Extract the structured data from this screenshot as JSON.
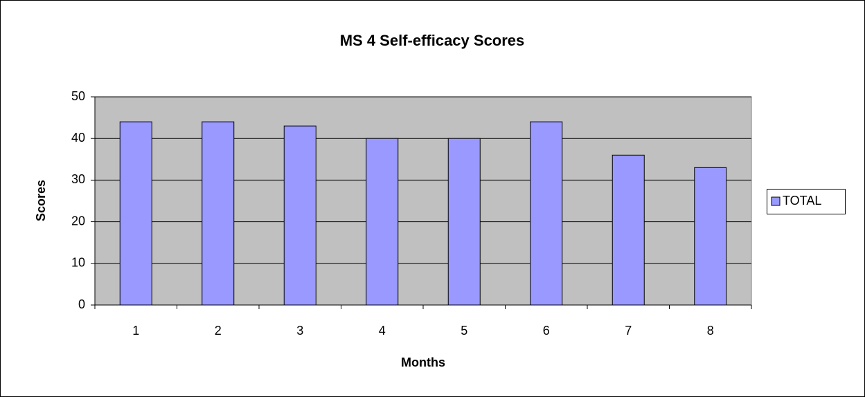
{
  "chart_data": {
    "type": "bar",
    "title": "MS 4 Self-efficacy Scores",
    "x_label": "Months",
    "y_label": "Scores",
    "categories": [
      "1",
      "2",
      "3",
      "4",
      "5",
      "6",
      "7",
      "8"
    ],
    "series": [
      {
        "name": "TOTAL",
        "color": "#9999ff",
        "values": [
          44,
          44,
          43,
          40,
          40,
          44,
          36,
          33
        ]
      }
    ],
    "ylim": [
      0,
      50
    ],
    "yticks": [
      0,
      10,
      20,
      30,
      40,
      50
    ],
    "grid": true,
    "legend": "right",
    "plot_background": "#c0c0c0"
  }
}
